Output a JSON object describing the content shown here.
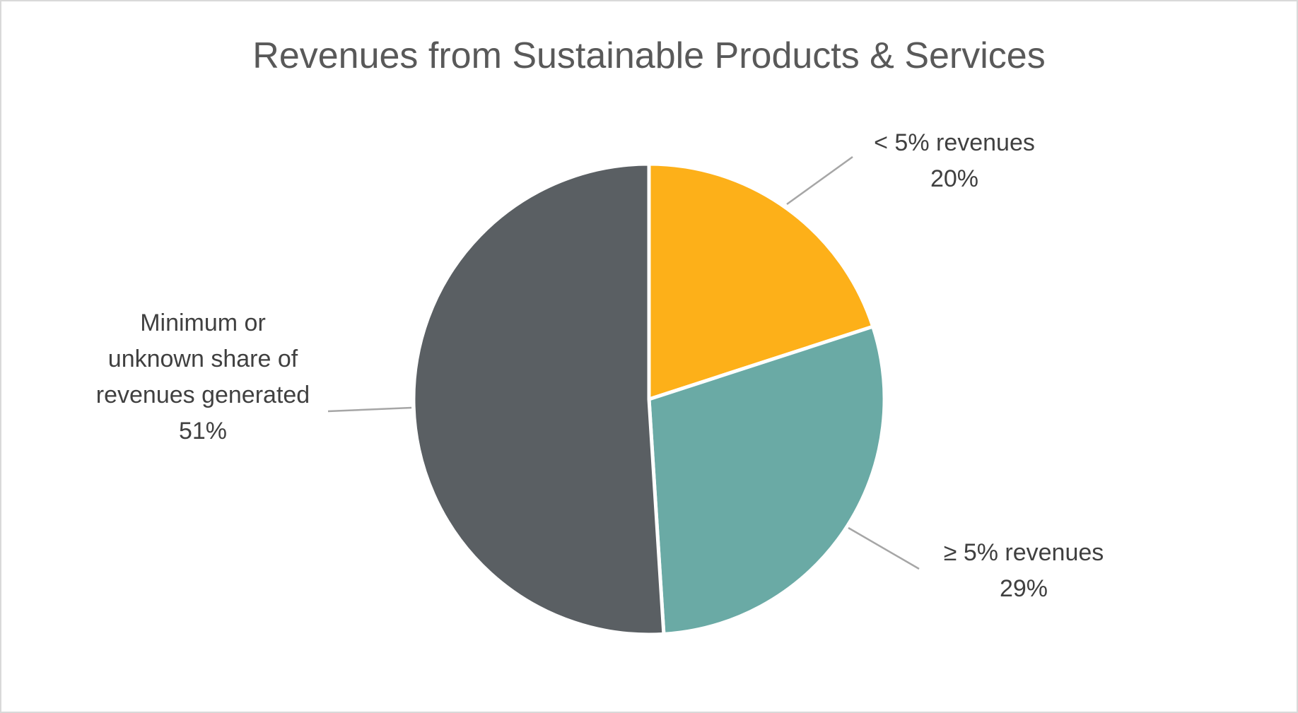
{
  "chart_data": {
    "type": "pie",
    "title": "Revenues from Sustainable Products & Services",
    "start_angle_deg": 0,
    "direction": "clockwise",
    "slices": [
      {
        "name": "< 5% revenues",
        "label_lines": [
          "< 5% revenues",
          "20%"
        ],
        "value": 20,
        "percent_label": "20%",
        "color": "#FDB019"
      },
      {
        "name": "≥ 5% revenues",
        "label_lines": [
          "≥ 5% revenues",
          "29%"
        ],
        "value": 29,
        "percent_label": "29%",
        "color": "#6AAAA5"
      },
      {
        "name": "Minimum or unknown share of revenues generated",
        "label_lines": [
          "Minimum or",
          "unknown share of",
          "revenues generated",
          "51%"
        ],
        "value": 51,
        "percent_label": "51%",
        "color": "#5A5F63"
      }
    ],
    "legend": "none",
    "data_labels": "outside-with-leader-lines",
    "background": "#FFFFFF",
    "border_color": "#D9D9D9"
  }
}
